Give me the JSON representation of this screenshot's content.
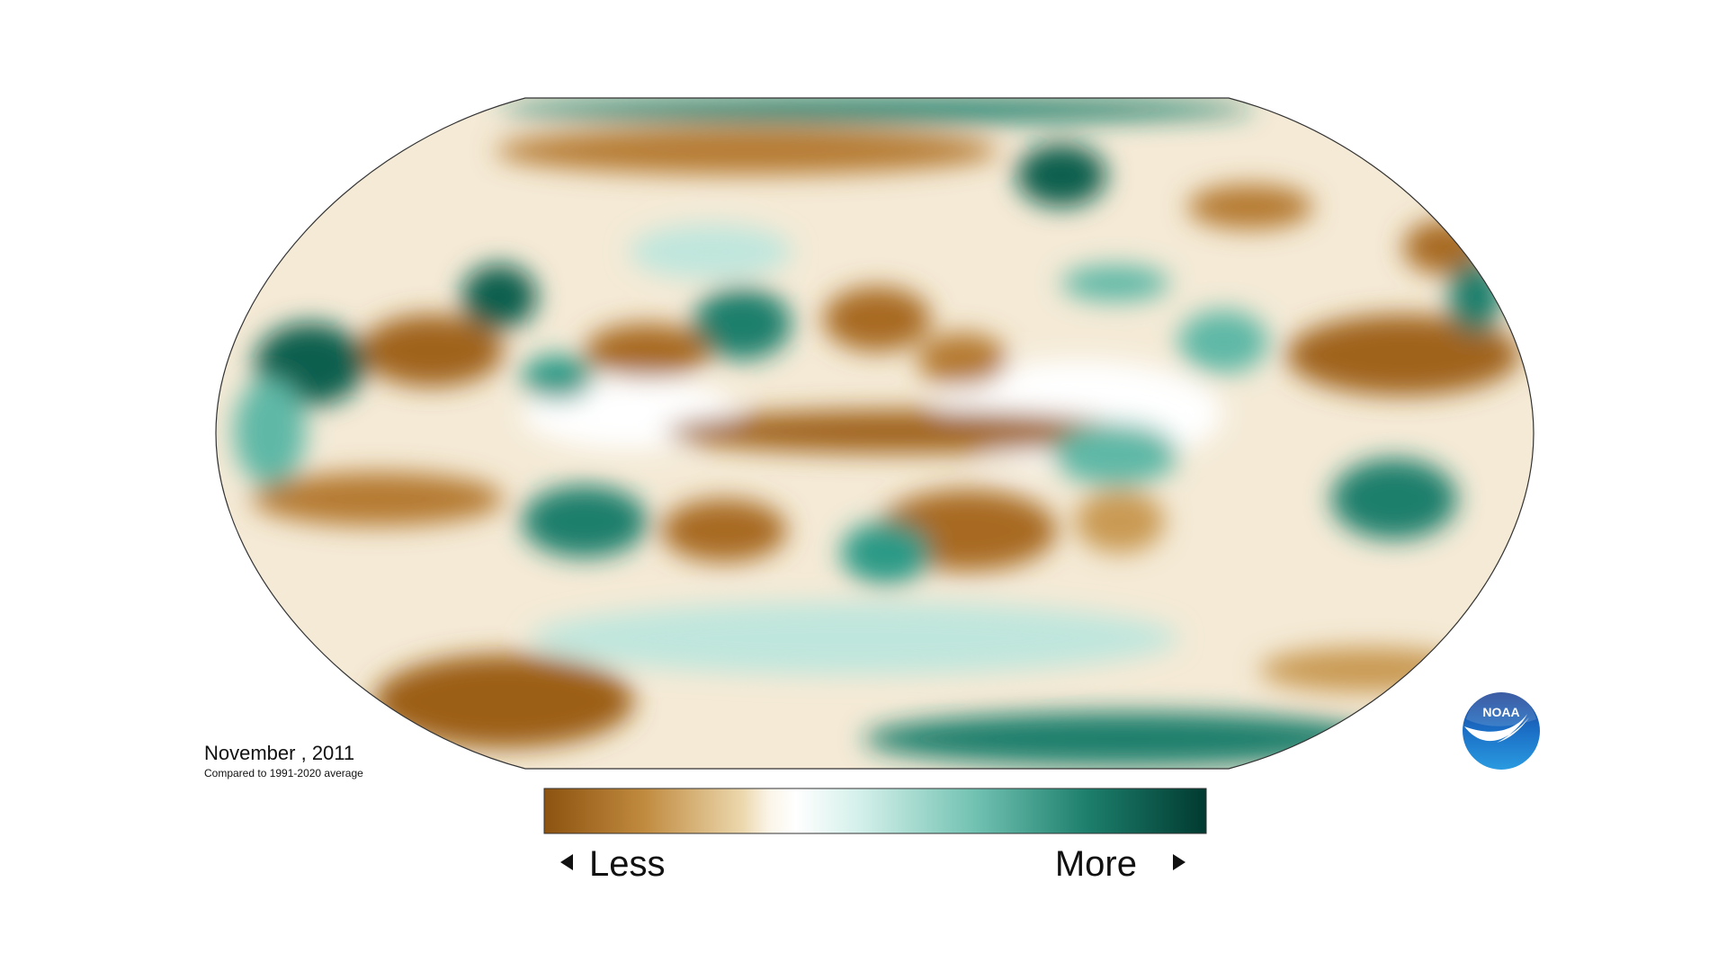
{
  "map": {
    "date_label": "November , 2011",
    "subtitle": "Compared to 1991-2020 average"
  },
  "legend": {
    "less": "Less",
    "more": "More"
  },
  "logo": {
    "text": "NOAA"
  }
}
